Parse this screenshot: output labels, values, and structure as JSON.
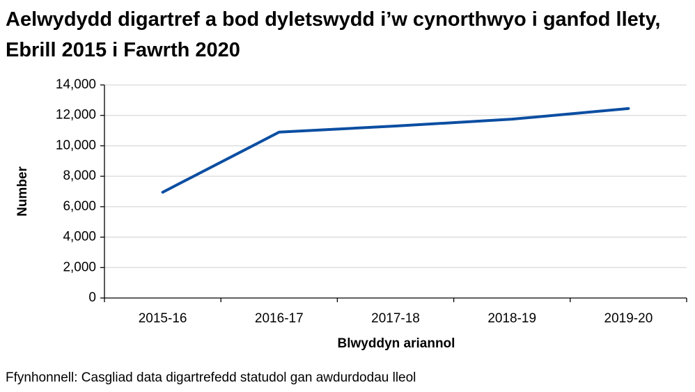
{
  "chart_data": {
    "type": "line",
    "title": "Aelwydydd digartref a bod dyletswydd i’w cynorthwyo i ganfod llety, Ebrill 2015 i Fawrth 2020",
    "x_label": "Blwyddyn ariannol",
    "y_label": "Number",
    "source": "Ffynhonnell: Casgliad data digartrefedd statudol gan awdurdodau lleol",
    "categories": [
      "2015-16",
      "2016-17",
      "2017-18",
      "2018-19",
      "2019-20"
    ],
    "values": [
      6950,
      10900,
      11300,
      11750,
      12450
    ],
    "color": "#0b4ea2",
    "ylim": [
      0,
      14000
    ],
    "yticks": [
      0,
      {
        "value": 2000,
        "label": "2,000"
      },
      {
        "value": 4000,
        "label": "4,000"
      },
      {
        "value": 6000,
        "label": "6,000"
      },
      {
        "value": 8000,
        "label": "8,000"
      },
      {
        "value": 10000,
        "label": "10,000"
      },
      {
        "value": 12000,
        "label": "12,000"
      },
      {
        "value": 14000,
        "label": "14,000"
      }
    ],
    "grid": true
  }
}
